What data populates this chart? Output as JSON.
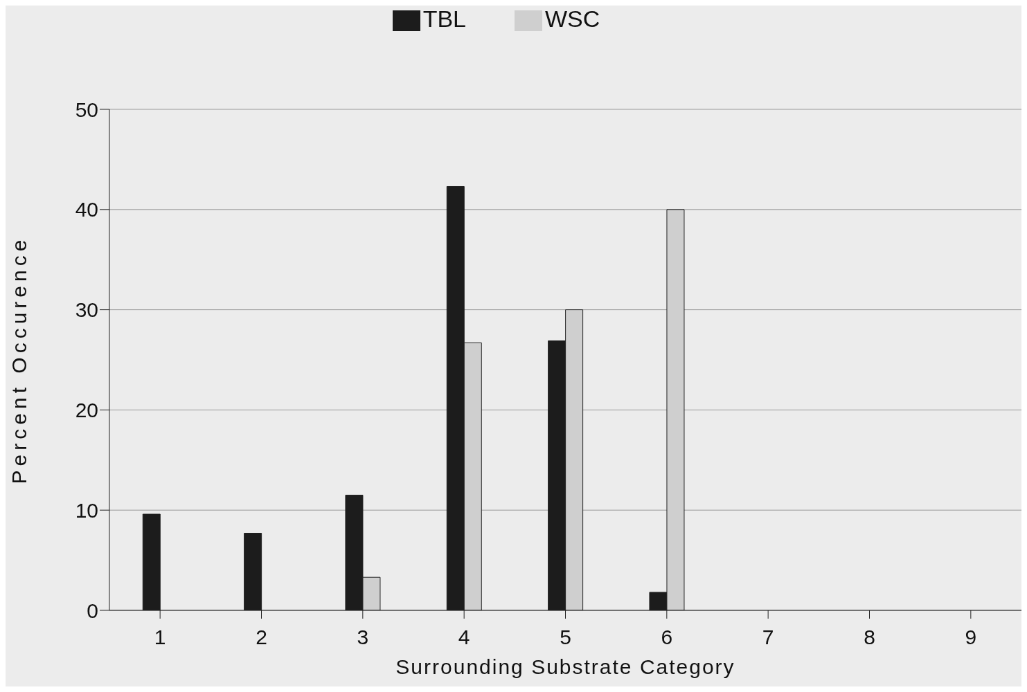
{
  "chart_data": {
    "type": "bar",
    "xlabel": "Surrounding Substrate Category",
    "ylabel": "Percent Occurence",
    "categories": [
      "1",
      "2",
      "3",
      "4",
      "5",
      "6",
      "7",
      "8",
      "9"
    ],
    "series": [
      {
        "name": "TBL",
        "color": "#1c1c1c",
        "values": [
          9.6,
          7.7,
          11.5,
          42.3,
          26.9,
          1.8,
          null,
          null,
          null
        ]
      },
      {
        "name": "WSC",
        "color": "#cfcfcf",
        "values": [
          null,
          null,
          3.3,
          26.7,
          30.0,
          40.0,
          null,
          null,
          null
        ]
      }
    ],
    "ylim": [
      0,
      50
    ],
    "yticks": [
      0,
      10,
      20,
      30,
      40,
      50
    ],
    "grid": "y",
    "legend": "top"
  }
}
